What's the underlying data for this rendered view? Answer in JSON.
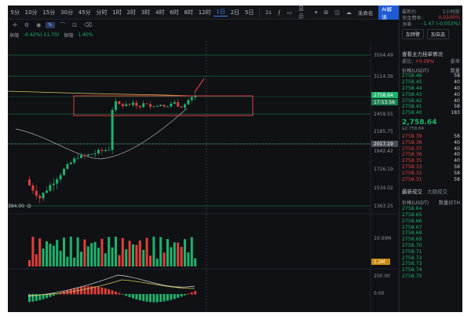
{
  "timeframes": [
    "5分",
    "10分",
    "15分",
    "30分",
    "45分",
    "分时",
    "1时",
    "2时",
    "3时",
    "4时",
    "6时",
    "8时",
    "12时",
    "1日",
    "2日",
    "5日"
  ],
  "active_timeframe": "1日",
  "toolbar": {
    "clock": "1s",
    "display_label": "显示",
    "unlogged_label": "未命名",
    "ai_label": "AI解读"
  },
  "subbar": {
    "close_label": "振幅",
    "stats_text": "-0.42%(-11.70)",
    "amplitude_label": "振幅",
    "amplitude_value": "1.40%"
  },
  "price_scale": [
    "3504.49",
    "3114.36",
    "2758.64",
    "2459.55",
    "2185.75",
    "2017.19",
    "1942.42",
    "1726.19",
    "1534.02",
    "1363.25"
  ],
  "price_tags": {
    "current": "2758.64",
    "countdown": "17:53:56",
    "level": "2017.19"
  },
  "low_label": "384.00",
  "volume_scale": [
    "10.00M",
    "1.2M"
  ],
  "macd_scale": [
    "200.00",
    "0.00"
  ],
  "colors": {
    "up": "#1fb36b",
    "down": "#e0403a",
    "accent": "#3b82f6",
    "box": "#e0403a",
    "ma_yellow": "#d6c95a",
    "ma_white": "#d9d9d9"
  },
  "panel": {
    "top": {
      "line1_label": "最新价",
      "line1_value": "1小时前",
      "line2_label": "资金费率:",
      "line2_value": "0.0100%",
      "line3_label": "净差",
      "line3_value": "-1.47 (-0.053%)"
    },
    "buttons": [
      "加预警",
      "加自选",
      "加自选"
    ],
    "orderbook_title": "查看主力挂单情况",
    "ratio_label": "委比:",
    "ratio_value": "+0.08%",
    "ratio_diff": "委差",
    "cols": [
      "价格(USDT)",
      "数量"
    ],
    "asks": [
      [
        "2758.46",
        "58"
      ],
      [
        "2758.45",
        "40"
      ],
      [
        "2758.44",
        "40"
      ],
      [
        "2758.43",
        "40"
      ],
      [
        "2758.42",
        "40"
      ],
      [
        "2758.41",
        "58"
      ],
      [
        "2758.40",
        "183"
      ]
    ],
    "last_price": "2,758.64",
    "last_price_sub": "$2,758.64",
    "bids": [
      [
        "2758.39",
        "58"
      ],
      [
        "2758.38",
        "40"
      ],
      [
        "2758.37",
        "40"
      ],
      [
        "2758.36",
        "40"
      ],
      [
        "2758.35",
        "40"
      ],
      [
        "2758.33",
        "58"
      ],
      [
        "2758.32",
        "58"
      ],
      [
        "2758.31",
        "58"
      ]
    ],
    "trades_tabs": [
      "最新成交",
      "大额成交"
    ],
    "trades_cols": [
      "价格(USDT)",
      "数量(ETH"
    ],
    "trades": [
      "2758.64",
      "2758.65",
      "2758.66",
      "2758.67",
      "2758.68",
      "2758.69",
      "2758.70",
      "2758.71",
      "2758.72",
      "2758.73",
      "2758.74",
      "2758.75"
    ]
  }
}
